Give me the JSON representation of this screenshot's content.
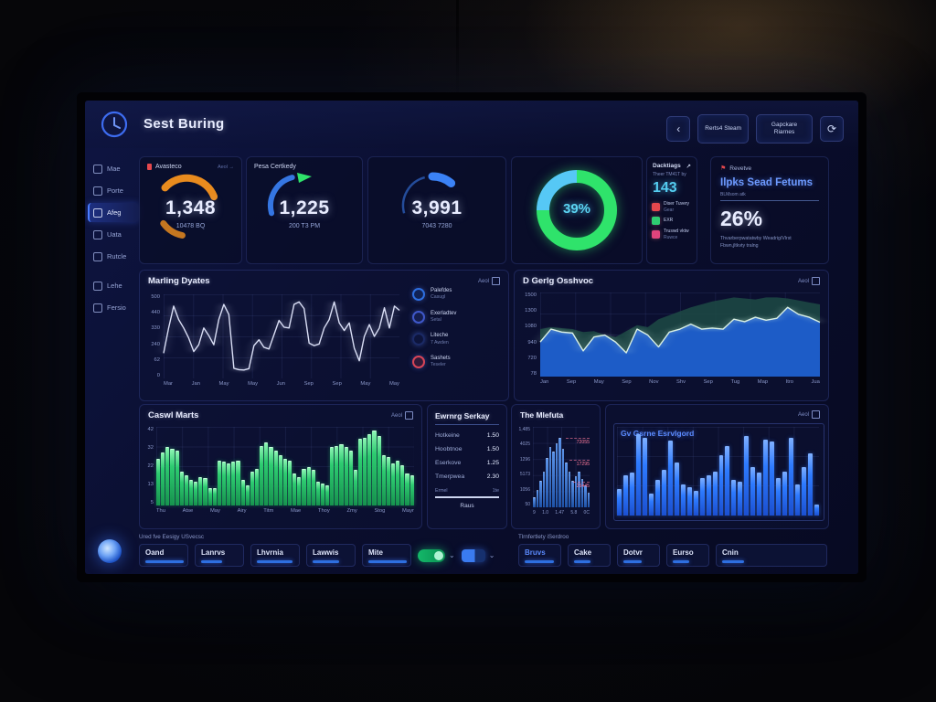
{
  "header": {
    "title": "Sest Buring",
    "back_icon": "‹",
    "buttons": [
      {
        "label": "Rerts4 Steam"
      },
      {
        "label": "Gapckare Riarnes"
      }
    ],
    "icon_button": "⟳"
  },
  "sidebar": {
    "items": [
      {
        "label": "Mae",
        "active": false
      },
      {
        "label": "Porte",
        "active": false
      },
      {
        "label": "Afeg",
        "active": true
      },
      {
        "label": "Uata",
        "active": false
      },
      {
        "label": "Rutcle",
        "active": false
      },
      {
        "label": "Lehe",
        "active": false,
        "gap": true
      },
      {
        "label": "Fersio",
        "active": false
      }
    ]
  },
  "kpis": {
    "card1": {
      "title": "Avasteco",
      "action": "Aeol →",
      "value": "1,348",
      "sub": "10478 BQ",
      "accent": "#f5921e"
    },
    "card2": {
      "title": "Pesa Certkedy",
      "value": "1,225",
      "sub": "200 T3 PM",
      "accent": "#3b82f6",
      "arrow_color": "#2fe36b"
    },
    "card3": {
      "value": "3,991",
      "sub": "7043 7280",
      "accent": "#3b82f6"
    },
    "donut": {
      "value": "39%",
      "green": "#2fe36b",
      "cyan": "#56c8f5",
      "green_pct": 75
    },
    "card5": {
      "title": "Dacktiags",
      "arrow": "↗",
      "sub": "Theer TM41T by",
      "value": "143",
      "items": [
        {
          "label": "Diser Tuvery",
          "sub": "Gear",
          "color": "#e5484d"
        },
        {
          "label": "EXR",
          "sub": "",
          "color": "#2ecc71"
        },
        {
          "label": "Truswd vktw",
          "sub": "Ruwce",
          "color": "#e0447c"
        }
      ]
    },
    "card6": {
      "flag": "⚑",
      "label": "Revetve",
      "heading": "Ilpks Sead Fetums",
      "subline": "BLMsom atk",
      "value": "26%",
      "desc1": "Thvarberpwatatwby Weadrig/Vlrst",
      "desc2": "Fbwn,jltkvty tralng"
    }
  },
  "chart_data": [
    {
      "id": "marling",
      "type": "line",
      "title": "Marling Dyates",
      "action": "Aeol",
      "ylim": [
        0,
        500
      ],
      "y_ticks": [
        "500",
        "440",
        "330",
        "240",
        "62",
        "0"
      ],
      "x_ticks": [
        "Mar",
        "Jan",
        "May",
        "May",
        "Jun",
        "Sep",
        "Sep",
        "May",
        "May"
      ],
      "line_color": "#d9def5",
      "values": [
        150,
        300,
        430,
        350,
        300,
        240,
        160,
        200,
        300,
        255,
        200,
        350,
        440,
        380,
        60,
        52,
        50,
        58,
        195,
        230,
        185,
        175,
        260,
        345,
        305,
        300,
        440,
        455,
        415,
        210,
        195,
        205,
        300,
        350,
        455,
        330,
        285,
        330,
        180,
        105,
        250,
        320,
        250,
        300,
        420,
        300,
        430,
        405
      ],
      "legend": [
        {
          "label": "Palefdes",
          "sub": "Casugl",
          "color": "#2e6fe0"
        },
        {
          "label": "Exerladtev",
          "sub": "Setal",
          "color": "#3f58c9"
        },
        {
          "label": "Liteche",
          "sub": "7 Awden",
          "color": "#1b2a66"
        },
        {
          "label": "Sashets",
          "sub": "Teseler",
          "color": "#d84558"
        }
      ]
    },
    {
      "id": "gerlg",
      "type": "area",
      "title": "D Gerlg Osshvoc",
      "action": "Aeol",
      "ylim": [
        700,
        1550
      ],
      "y_ticks": [
        "1500",
        "1300",
        "1080",
        "940",
        "720",
        "78"
      ],
      "x_ticks": [
        "Jan",
        "Sep",
        "May",
        "Sep",
        "Nov",
        "Shv",
        "Sep",
        "Tug",
        "Map",
        "Itro",
        "Jua"
      ],
      "series": [
        {
          "name": "back",
          "color": "#1d4a44",
          "values": [
            1180,
            1200,
            1190,
            1180,
            1150,
            1160,
            1120,
            1100,
            1160,
            1220,
            1200,
            1280,
            1320,
            1360,
            1400,
            1430,
            1460,
            1480,
            1500,
            1490,
            1480,
            1500,
            1500,
            1490,
            1470,
            1450,
            1430
          ]
        },
        {
          "name": "front",
          "color": "#1e5fd6",
          "line_color": "#d8efe4",
          "values": [
            1050,
            1180,
            1150,
            1140,
            960,
            1100,
            1120,
            1050,
            940,
            1180,
            1120,
            1000,
            1150,
            1180,
            1230,
            1180,
            1190,
            1180,
            1280,
            1255,
            1300,
            1270,
            1290,
            1400,
            1330,
            1300,
            1250
          ]
        }
      ]
    },
    {
      "id": "caswl",
      "type": "bar",
      "title": "Caswl Marts",
      "action": "Aeol",
      "ylim": [
        0,
        48
      ],
      "y_ticks": [
        "42",
        "32",
        "22",
        "13",
        "5"
      ],
      "x_ticks": [
        "Thu",
        "Atse",
        "May",
        "Airy",
        "Titm",
        "Mae",
        "Thoy",
        "Zmy",
        "Stog",
        "Mayr"
      ],
      "bar_color": "#2ecc71",
      "values": [
        28,
        32,
        35,
        34,
        33,
        20,
        18,
        15,
        14,
        17,
        16,
        10,
        10,
        27,
        26,
        25,
        26,
        27,
        15,
        12,
        20,
        22,
        36,
        38,
        35,
        33,
        30,
        28,
        27,
        19,
        17,
        22,
        23,
        21,
        14,
        13,
        12,
        35,
        36,
        37,
        35,
        33,
        21,
        40,
        41,
        43,
        45,
        42,
        30,
        29,
        25,
        27,
        24,
        19,
        18
      ]
    },
    {
      "id": "mlefuta",
      "type": "bar",
      "title": "The Mlefuta",
      "ylim": [
        0,
        70
      ],
      "y_ticks": [
        "1,485",
        "4025",
        "1296",
        "5173",
        "1056",
        "50"
      ],
      "x_ticks": [
        "9",
        "1.0",
        "1.47",
        "5.8",
        "0C"
      ],
      "bar_color": "#2e6fd6",
      "annotations": [
        "72055",
        "17295",
        "25445"
      ],
      "values": [
        8,
        14,
        22,
        30,
        42,
        52,
        48,
        55,
        60,
        50,
        38,
        30,
        22,
        26,
        30,
        24,
        18,
        12
      ]
    },
    {
      "id": "gsrne",
      "type": "bar",
      "label": "Gv Gsrne Esrvlgord",
      "action": "Aeol",
      "ylim": [
        0,
        100
      ],
      "bar_color": "#2e7bff",
      "values": [
        30,
        45,
        48,
        92,
        88,
        25,
        40,
        52,
        85,
        60,
        35,
        32,
        28,
        42,
        45,
        50,
        68,
        78,
        40,
        38,
        90,
        55,
        48,
        86,
        84,
        42,
        50,
        88,
        35,
        55,
        70,
        12
      ]
    }
  ],
  "table": {
    "title": "Ewrnrg Serkay",
    "rows": [
      {
        "label": "Hotkeine",
        "value": "1.50"
      },
      {
        "label": "Hoobtnoe",
        "value": "1.50"
      },
      {
        "label": "Eserkove",
        "value": "1.25"
      },
      {
        "label": "Tmerpwea",
        "value": "2.30"
      }
    ],
    "footer_label": "Ermel",
    "footer_value": "1te",
    "button": "Raus"
  },
  "bottom": {
    "left": {
      "caption": "Ured fve Eesigy USvecsc",
      "buttons": [
        {
          "label": "Oand",
          "bar": 80
        },
        {
          "label": "Lanrvs",
          "bar": 45
        },
        {
          "label": "Lhvrnia",
          "bar": 75
        },
        {
          "label": "Lawwis",
          "bar": 55
        },
        {
          "label": "Mite",
          "bar": 80
        }
      ]
    },
    "right": {
      "caption": "Tlrnfertlety iSerdroo",
      "buttons": [
        {
          "label": "Bruvs",
          "bar": 70,
          "highlight": true
        },
        {
          "label": "Cake",
          "bar": 40
        },
        {
          "label": "Dotvr",
          "bar": 45
        },
        {
          "label": "Eurso",
          "bar": 40
        },
        {
          "label": "Cnin",
          "bar": 20
        }
      ]
    }
  }
}
